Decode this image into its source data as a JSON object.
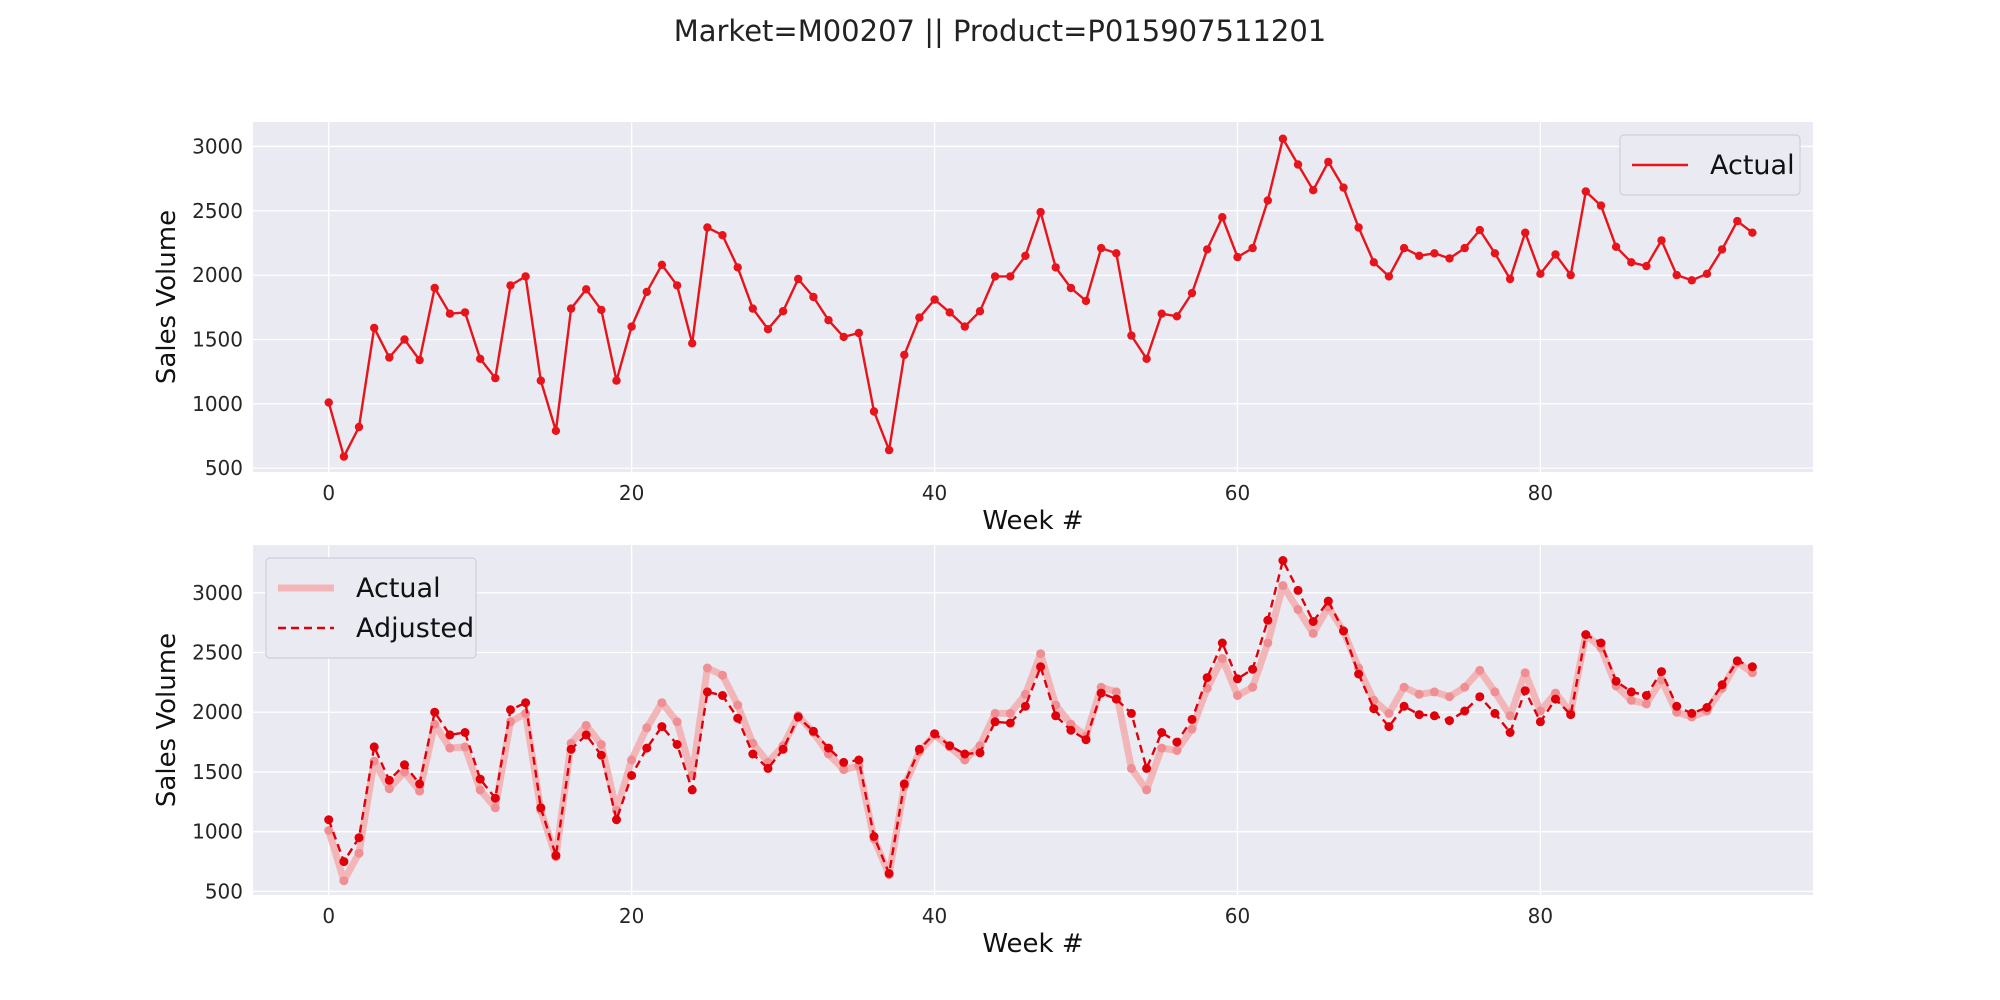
{
  "figure": {
    "title": "Market=M00207 || Product=P015907511201"
  },
  "colors": {
    "actual": "#e8141b",
    "actual_faded": "#f2b6b8",
    "adjusted": "#e0000a",
    "plot_bg": "#eaeaf2",
    "grid": "#ffffff"
  },
  "chart_data": [
    {
      "type": "line",
      "xlabel": "Week #",
      "ylabel": "Sales Volume",
      "xlim": [
        -5,
        98
      ],
      "ylim": [
        470,
        3190
      ],
      "xticks": [
        0,
        20,
        40,
        60,
        80
      ],
      "yticks": [
        500,
        1000,
        1500,
        2000,
        2500,
        3000
      ],
      "grid": true,
      "legend_position": "top-right",
      "series": [
        {
          "name": "Actual",
          "style": "solid",
          "values": [
            1010,
            590,
            820,
            1590,
            1360,
            1500,
            1340,
            1900,
            1700,
            1710,
            1350,
            1200,
            1920,
            1990,
            1180,
            790,
            1740,
            1890,
            1730,
            1180,
            1600,
            1870,
            2080,
            1920,
            1470,
            2370,
            2310,
            2060,
            1740,
            1580,
            1720,
            1970,
            1830,
            1650,
            1520,
            1550,
            940,
            640,
            1380,
            1670,
            1810,
            1710,
            1600,
            1720,
            1990,
            1990,
            2150,
            2490,
            2060,
            1900,
            1800,
            2210,
            2170,
            1530,
            1350,
            1700,
            1680,
            1860,
            2200,
            2450,
            2140,
            2210,
            2580,
            3060,
            2860,
            2660,
            2880,
            2680,
            2370,
            2100,
            1990,
            2210,
            2150,
            2170,
            2130,
            2210,
            2350,
            2170,
            1970,
            2330,
            2010,
            2160,
            2000,
            2650,
            2540,
            2220,
            2100,
            2070,
            2270,
            2000,
            1960,
            2010,
            2200,
            2420,
            2330
          ]
        }
      ]
    },
    {
      "type": "line",
      "xlabel": "Week #",
      "ylabel": "Sales Volume",
      "xlim": [
        -5,
        98
      ],
      "ylim": [
        470,
        3400
      ],
      "xticks": [
        0,
        20,
        40,
        60,
        80
      ],
      "yticks": [
        500,
        1000,
        1500,
        2000,
        2500,
        3000
      ],
      "grid": true,
      "legend_position": "top-left",
      "series": [
        {
          "name": "Actual",
          "style": "thick-faded",
          "values": [
            1010,
            590,
            820,
            1590,
            1360,
            1500,
            1340,
            1900,
            1700,
            1710,
            1350,
            1200,
            1920,
            1990,
            1180,
            790,
            1740,
            1890,
            1730,
            1180,
            1600,
            1870,
            2080,
            1920,
            1470,
            2370,
            2310,
            2060,
            1740,
            1580,
            1720,
            1970,
            1830,
            1650,
            1520,
            1550,
            940,
            640,
            1380,
            1670,
            1810,
            1710,
            1600,
            1720,
            1990,
            1990,
            2150,
            2490,
            2060,
            1900,
            1800,
            2210,
            2170,
            1530,
            1350,
            1700,
            1680,
            1860,
            2200,
            2450,
            2140,
            2210,
            2580,
            3060,
            2860,
            2660,
            2880,
            2680,
            2370,
            2100,
            1990,
            2210,
            2150,
            2170,
            2130,
            2210,
            2350,
            2170,
            1970,
            2330,
            2010,
            2160,
            2000,
            2650,
            2540,
            2220,
            2100,
            2070,
            2270,
            2000,
            1960,
            2010,
            2200,
            2420,
            2330
          ]
        },
        {
          "name": "Adjusted",
          "style": "dashed",
          "values": [
            1100,
            750,
            950,
            1710,
            1430,
            1560,
            1400,
            2000,
            1810,
            1830,
            1440,
            1280,
            2020,
            2080,
            1200,
            800,
            1690,
            1810,
            1640,
            1100,
            1470,
            1700,
            1880,
            1730,
            1350,
            2170,
            2140,
            1950,
            1650,
            1530,
            1690,
            1960,
            1840,
            1700,
            1580,
            1600,
            960,
            650,
            1400,
            1690,
            1820,
            1720,
            1650,
            1660,
            1920,
            1910,
            2050,
            2380,
            1970,
            1850,
            1770,
            2160,
            2110,
            1990,
            1530,
            1830,
            1750,
            1940,
            2290,
            2580,
            2280,
            2360,
            2770,
            3270,
            3020,
            2760,
            2930,
            2680,
            2320,
            2030,
            1880,
            2050,
            1980,
            1970,
            1930,
            2010,
            2130,
            1990,
            1830,
            2180,
            1920,
            2110,
            1980,
            2650,
            2580,
            2260,
            2170,
            2140,
            2340,
            2050,
            1990,
            2040,
            2230,
            2430,
            2380
          ]
        }
      ]
    }
  ]
}
